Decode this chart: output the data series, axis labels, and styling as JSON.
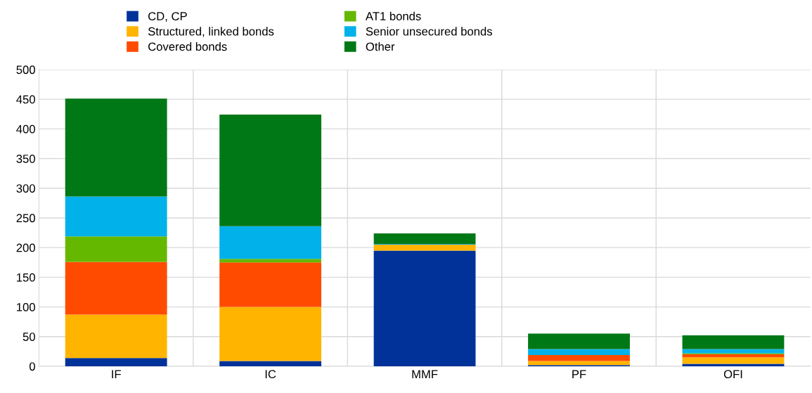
{
  "chart_data": {
    "type": "bar",
    "stacked": true,
    "categories": [
      "IF",
      "IC",
      "MMF",
      "PF",
      "OFI"
    ],
    "series": [
      {
        "name": "CD, CP",
        "color": "#003299",
        "values": [
          14,
          9,
          195,
          2,
          4
        ]
      },
      {
        "name": "Structured, linked bonds",
        "color": "#ffb400",
        "values": [
          73,
          91,
          10,
          7,
          11
        ]
      },
      {
        "name": "Covered bonds",
        "color": "#ff4b00",
        "values": [
          89,
          75,
          0,
          10,
          5
        ]
      },
      {
        "name": "AT1 bonds",
        "color": "#65b800",
        "values": [
          43,
          6,
          0,
          0,
          2
        ]
      },
      {
        "name": "Senior unsecured bonds",
        "color": "#00b1ea",
        "values": [
          67,
          55,
          1,
          10,
          7
        ]
      },
      {
        "name": "Other",
        "color": "#007816",
        "values": [
          165,
          188,
          18,
          26,
          23
        ]
      }
    ],
    "ylim": [
      0,
      500
    ],
    "yticks": [
      0,
      50,
      100,
      150,
      200,
      250,
      300,
      350,
      400,
      450,
      500
    ],
    "grid": true,
    "legend": "top"
  }
}
